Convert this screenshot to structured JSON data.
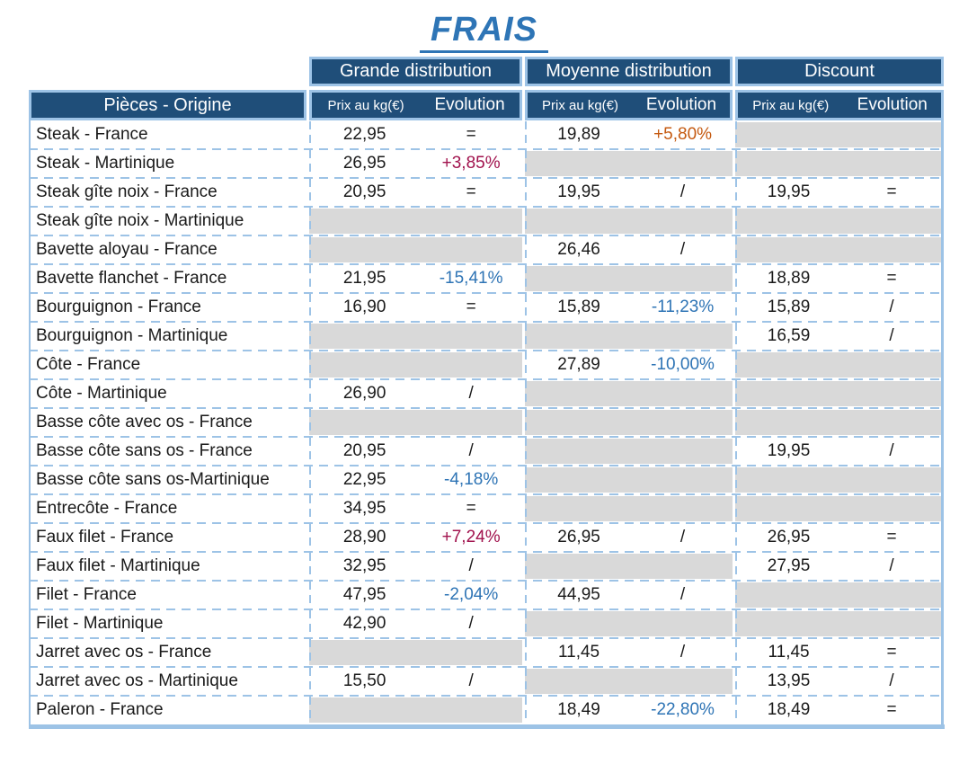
{
  "title": "FRAIS",
  "table": {
    "pieces_header": "Pièces - Origine",
    "groups": [
      "Grande distribution",
      "Moyenne distribution",
      "Discount"
    ],
    "sub_columns": {
      "price": "Prix au kg(€)",
      "evolution": "Evolution"
    },
    "rows": [
      {
        "piece": "Steak - France",
        "gd": {
          "price": "22,95",
          "evo": "=",
          "evo_color": "black"
        },
        "md": {
          "price": "19,89",
          "evo": "+5,80%",
          "evo_color": "orange"
        },
        "dc": null
      },
      {
        "piece": "Steak - Martinique",
        "gd": {
          "price": "26,95",
          "evo": "+3,85%",
          "evo_color": "red"
        },
        "md": null,
        "dc": null
      },
      {
        "piece": "Steak gîte noix  - France",
        "gd": {
          "price": "20,95",
          "evo": "=",
          "evo_color": "black"
        },
        "md": {
          "price": "19,95",
          "evo": "/",
          "evo_color": "black"
        },
        "dc": {
          "price": "19,95",
          "evo": "=",
          "evo_color": "black"
        }
      },
      {
        "piece": "Steak gîte noix - Martinique",
        "gd": null,
        "md": null,
        "dc": null
      },
      {
        "piece": "Bavette aloyau  - France",
        "gd": null,
        "md": {
          "price": "26,46",
          "evo": "/",
          "evo_color": "black"
        },
        "dc": null
      },
      {
        "piece": "Bavette flanchet - France",
        "gd": {
          "price": "21,95",
          "evo": "-15,41%",
          "evo_color": "blue"
        },
        "md": null,
        "dc": {
          "price": "18,89",
          "evo": "=",
          "evo_color": "black"
        }
      },
      {
        "piece": "Bourguignon  - France",
        "gd": {
          "price": "16,90",
          "evo": "=",
          "evo_color": "black"
        },
        "md": {
          "price": "15,89",
          "evo": "-11,23%",
          "evo_color": "blue"
        },
        "dc": {
          "price": "15,89",
          "evo": "/",
          "evo_color": "black"
        }
      },
      {
        "piece": "Bourguignon - Martinique",
        "gd": null,
        "md": null,
        "dc": {
          "price": "16,59",
          "evo": "/",
          "evo_color": "black"
        }
      },
      {
        "piece": "Côte - France",
        "gd": null,
        "md": {
          "price": "27,89",
          "evo": "-10,00%",
          "evo_color": "blue"
        },
        "dc": null
      },
      {
        "piece": "Côte - Martinique",
        "gd": {
          "price": "26,90",
          "evo": "/",
          "evo_color": "black"
        },
        "md": null,
        "dc": null
      },
      {
        "piece": "Basse côte avec os - France",
        "gd": null,
        "md": null,
        "dc": null
      },
      {
        "piece": "Basse côte sans os - France",
        "gd": {
          "price": "20,95",
          "evo": "/",
          "evo_color": "black"
        },
        "md": null,
        "dc": {
          "price": "19,95",
          "evo": "/",
          "evo_color": "black"
        }
      },
      {
        "piece": "Basse côte sans os-Martinique",
        "gd": {
          "price": "22,95",
          "evo": "-4,18%",
          "evo_color": "blue"
        },
        "md": null,
        "dc": null
      },
      {
        "piece": "Entrecôte  - France",
        "gd": {
          "price": "34,95",
          "evo": "=",
          "evo_color": "black"
        },
        "md": null,
        "dc": null
      },
      {
        "piece": "Faux filet  - France",
        "gd": {
          "price": "28,90",
          "evo": "+7,24%",
          "evo_color": "red"
        },
        "md": {
          "price": "26,95",
          "evo": "/",
          "evo_color": "black"
        },
        "dc": {
          "price": "26,95",
          "evo": "=",
          "evo_color": "black"
        }
      },
      {
        "piece": "Faux filet - Martinique",
        "gd": {
          "price": "32,95",
          "evo": "/",
          "evo_color": "black"
        },
        "md": null,
        "dc": {
          "price": "27,95",
          "evo": "/",
          "evo_color": "black"
        }
      },
      {
        "piece": "Filet - France",
        "gd": {
          "price": "47,95",
          "evo": "-2,04%",
          "evo_color": "blue"
        },
        "md": {
          "price": "44,95",
          "evo": "/",
          "evo_color": "black"
        },
        "dc": null
      },
      {
        "piece": "Filet - Martinique",
        "gd": {
          "price": "42,90",
          "evo": "/",
          "evo_color": "black"
        },
        "md": null,
        "dc": null
      },
      {
        "piece": "Jarret avec os - France",
        "gd": null,
        "md": {
          "price": "11,45",
          "evo": "/",
          "evo_color": "black"
        },
        "dc": {
          "price": "11,45",
          "evo": "=",
          "evo_color": "black"
        }
      },
      {
        "piece": "Jarret avec os - Martinique",
        "gd": {
          "price": "15,50",
          "evo": "/",
          "evo_color": "black"
        },
        "md": null,
        "dc": {
          "price": "13,95",
          "evo": "/",
          "evo_color": "black"
        }
      },
      {
        "piece": "Paleron - France",
        "gd": null,
        "md": {
          "price": "18,49",
          "evo": "-22,80%",
          "evo_color": "blue"
        },
        "dc": {
          "price": "18,49",
          "evo": "=",
          "evo_color": "black"
        }
      }
    ]
  },
  "colors": {
    "header_bg": "#1F4E79",
    "border": "#9DC3E6",
    "title": "#2E75B6",
    "empty_cell": "#D9D9D9",
    "text": "#1A1A1A",
    "evo_negative": "#2E74B5",
    "evo_positive_red": "#A1124D",
    "evo_positive_orange": "#C55A11"
  }
}
